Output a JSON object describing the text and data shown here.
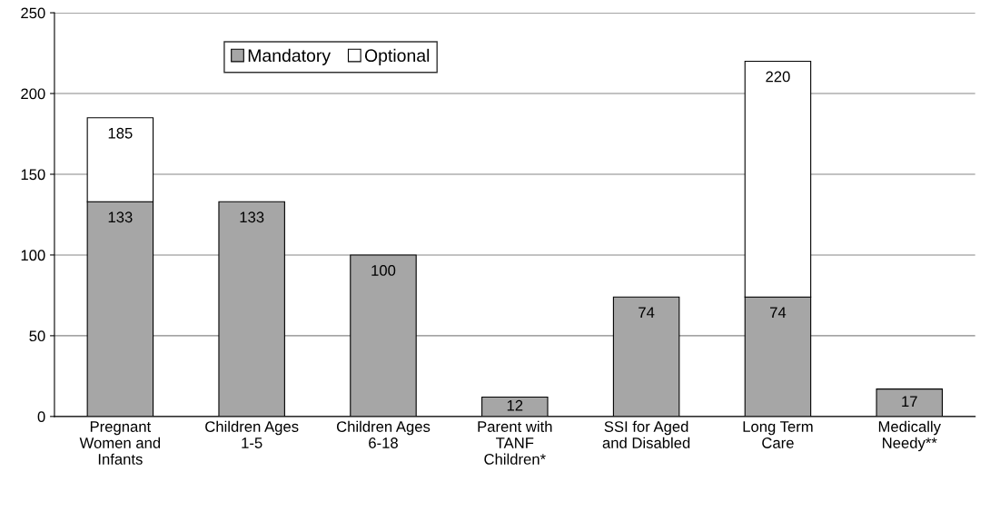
{
  "chart_data": {
    "type": "bar",
    "stacked": true,
    "categories": [
      "Pregnant\nWomen and\nInfants",
      "Children Ages\n1-5",
      "Children Ages\n6-18",
      "Parent with\nTANF\nChildren*",
      "SSI for Aged\nand Disabled",
      "Long Term\nCare",
      "Medically\nNeedy**"
    ],
    "series": [
      {
        "name": "Mandatory",
        "color": "#a6a6a6",
        "values": [
          133,
          133,
          100,
          12,
          74,
          74,
          17
        ],
        "value_labels": [
          "133",
          "133",
          "100",
          "12",
          "74",
          "74",
          "17"
        ]
      },
      {
        "name": "Optional",
        "color": "#ffffff",
        "values": [
          52,
          null,
          null,
          null,
          null,
          146,
          null
        ]
      }
    ],
    "totals": [
      "185",
      null,
      null,
      null,
      null,
      "220",
      null
    ],
    "ylim": [
      0,
      250
    ],
    "yticks": [
      0,
      50,
      100,
      150,
      200,
      250
    ],
    "grid": "y",
    "legend": "top"
  }
}
